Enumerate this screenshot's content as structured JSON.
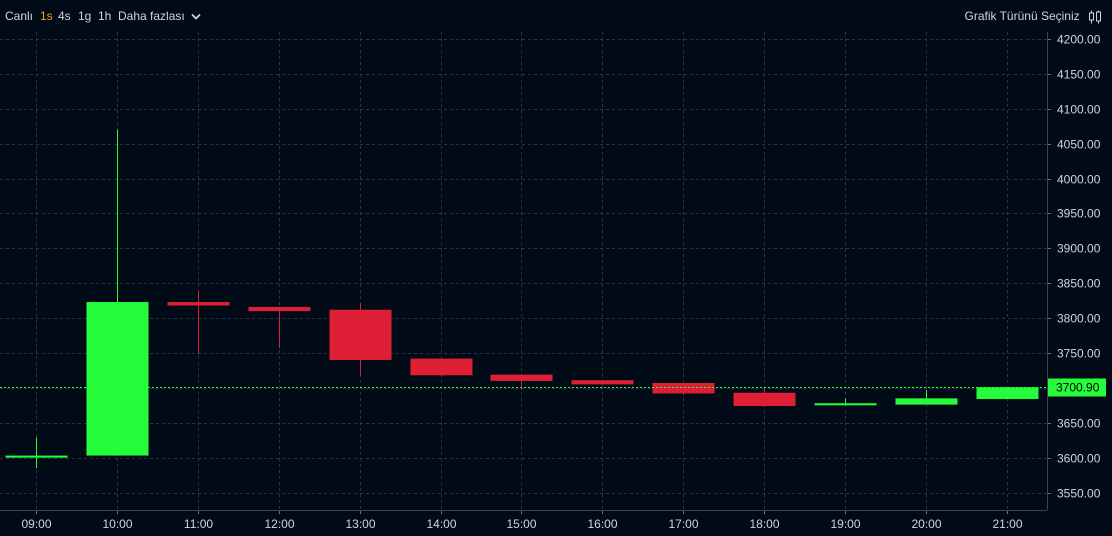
{
  "toolbar": {
    "live_label": "Canlı",
    "intervals": [
      {
        "label": "1s",
        "active": true
      },
      {
        "label": "4s",
        "active": false
      },
      {
        "label": "1g",
        "active": false
      },
      {
        "label": "1h",
        "active": false
      }
    ],
    "more_label": "Daha fazlası",
    "more_icon": "chevron-down-icon",
    "chart_type_label": "Grafik Türünü Seçiniz",
    "chart_type_icon": "candlestick-icon"
  },
  "colors": {
    "background": "#010b17",
    "grid": "#2a3442",
    "up": "#25fc3a",
    "down": "#de1f35",
    "axis_text": "#d1d4dc",
    "price_line": "#25fc3a",
    "active_interval": "#f6a01a"
  },
  "chart_data": {
    "type": "candlestick",
    "title": "",
    "xlabel": "",
    "ylabel": "",
    "ylim": [
      3525,
      4210
    ],
    "y_ticks": [
      "4200.00",
      "4150.00",
      "4100.00",
      "4050.00",
      "4000.00",
      "3950.00",
      "3900.00",
      "3850.00",
      "3800.00",
      "3750.00",
      "3700.00",
      "3650.00",
      "3600.00",
      "3550.00"
    ],
    "categories": [
      "09:00",
      "10:00",
      "11:00",
      "12:00",
      "13:00",
      "14:00",
      "15:00",
      "16:00",
      "17:00",
      "18:00",
      "19:00",
      "20:00",
      "21:00"
    ],
    "candles": [
      {
        "time": "09:00",
        "open": 3600,
        "high": 3629,
        "low": 3585,
        "close": 3603
      },
      {
        "time": "10:00",
        "open": 3603,
        "high": 4070,
        "low": 3603,
        "close": 3823
      },
      {
        "time": "11:00",
        "open": 3823,
        "high": 3840,
        "low": 3748,
        "close": 3818
      },
      {
        "time": "12:00",
        "open": 3816,
        "high": 3816,
        "low": 3757,
        "close": 3810
      },
      {
        "time": "13:00",
        "open": 3812,
        "high": 3821,
        "low": 3718,
        "close": 3740
      },
      {
        "time": "14:00",
        "open": 3742,
        "high": 3742,
        "low": 3717,
        "close": 3718
      },
      {
        "time": "15:00",
        "open": 3719,
        "high": 3719,
        "low": 3697,
        "close": 3710
      },
      {
        "time": "16:00",
        "open": 3711,
        "high": 3711,
        "low": 3704,
        "close": 3705
      },
      {
        "time": "17:00",
        "open": 3707,
        "high": 3707,
        "low": 3690,
        "close": 3692
      },
      {
        "time": "18:00",
        "open": 3693,
        "high": 3700,
        "low": 3673,
        "close": 3674
      },
      {
        "time": "19:00",
        "open": 3675,
        "high": 3685,
        "low": 3675,
        "close": 3678
      },
      {
        "time": "20:00",
        "open": 3676,
        "high": 3697,
        "low": 3676,
        "close": 3685
      },
      {
        "time": "21:00",
        "open": 3684,
        "high": 3700.9,
        "low": 3684,
        "close": 3700.9
      }
    ],
    "last_price": 3700.9,
    "last_price_label": "3700.90",
    "grid": true
  }
}
